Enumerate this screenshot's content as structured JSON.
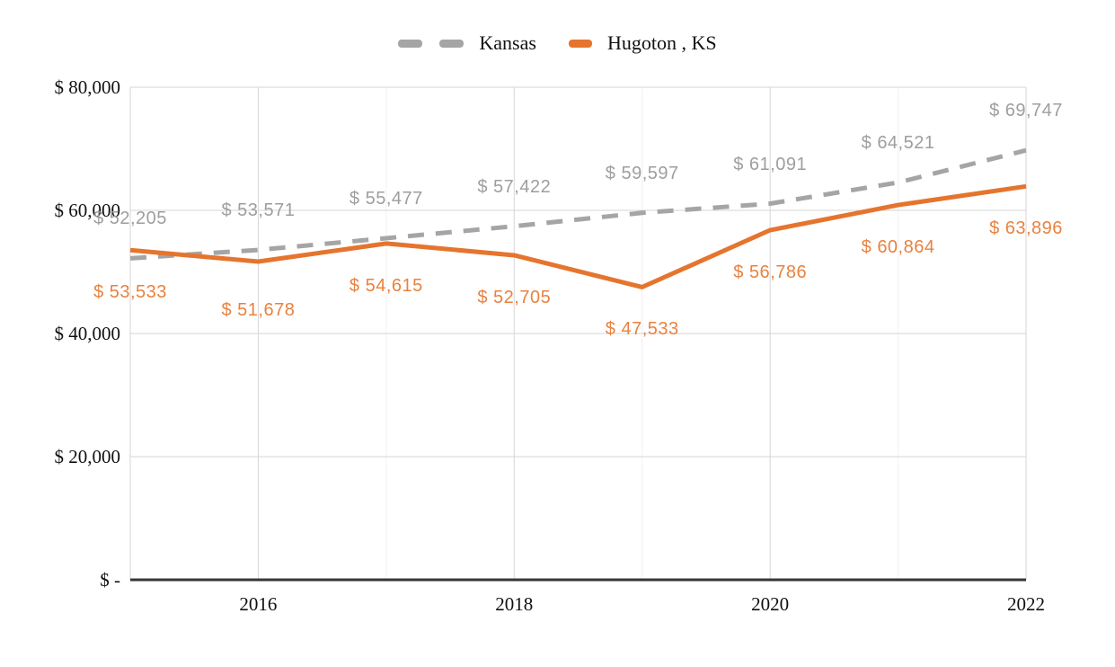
{
  "chart_data": {
    "type": "line",
    "x": [
      2015,
      2016,
      2017,
      2018,
      2019,
      2020,
      2021,
      2022
    ],
    "ylim": [
      0,
      80000
    ],
    "yticks": {
      "values": [
        0,
        20000,
        40000,
        60000,
        80000
      ],
      "labels": [
        "$ -",
        "$ 20,000",
        "$ 40,000",
        "$ 60,000",
        "$ 80,000"
      ]
    },
    "xticks": {
      "values": [
        2016,
        2018,
        2020,
        2022
      ],
      "labels": [
        "2016",
        "2018",
        "2020",
        "2022"
      ]
    },
    "grid": {
      "horizontal": true,
      "vertical_major": true,
      "vertical_minor": true
    },
    "legend_position": "top-center",
    "series": [
      {
        "name": "Kansas",
        "style": "dashed",
        "color": "#A5A5A5",
        "label_color": "#9E9E9E",
        "values": [
          52205,
          53571,
          55477,
          57422,
          59597,
          61091,
          64521,
          69747
        ],
        "labels": [
          "$ 52,205",
          "$ 53,571",
          "$ 55,477",
          "$ 57,422",
          "$ 59,597",
          "$ 61,091",
          "$ 64,521",
          "$ 69,747"
        ],
        "label_side": "above"
      },
      {
        "name": "Hugoton , KS",
        "style": "solid",
        "color": "#E5752E",
        "label_color": "#E8823F",
        "values": [
          53533,
          51678,
          54615,
          52705,
          47533,
          56786,
          60864,
          63896
        ],
        "labels": [
          "$ 53,533",
          "$ 51,678",
          "$ 54,615",
          "$ 52,705",
          "$ 47,533",
          "$ 56,786",
          "$ 60,864",
          "$ 63,896"
        ],
        "label_side": "below"
      }
    ],
    "colors": {
      "gridline_major": "#D6D6D6",
      "gridline_minor": "#F2F2F2",
      "axis_line": "#373737",
      "background": "#FFFFFF"
    }
  }
}
